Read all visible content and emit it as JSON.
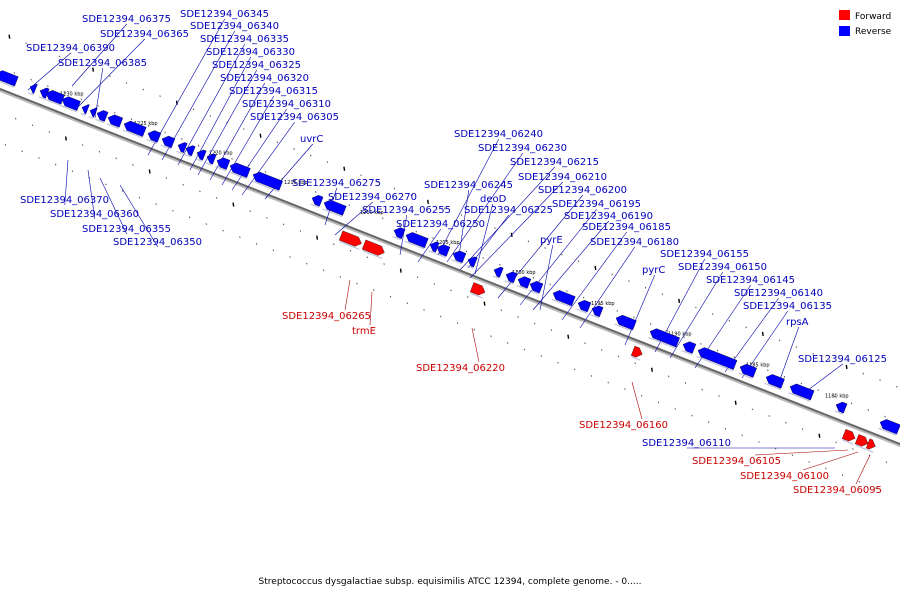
{
  "legend": {
    "items": [
      {
        "label": "Forward",
        "color": "#ff0000"
      },
      {
        "label": "Reverse",
        "color": "#0000ff"
      }
    ]
  },
  "caption": "Streptococcus dysgalactiae subsp. equisimilis ATCC 12394, complete genome. - 0.....",
  "colors": {
    "forward": "#ff0000",
    "reverse": "#0000ff",
    "forward_label": "#cc0000",
    "reverse_label": "#0000bb",
    "backbone": "#666666"
  },
  "scale_labels": [
    "1230 kbp",
    "1225 kbp",
    "1220 kbp",
    "1215 kbp",
    "1210 kbp",
    "1205 kbp",
    "1200 kbp",
    "1195 kbp",
    "1190 kbp",
    "1185 kbp",
    "1180 kbp"
  ],
  "genes": {
    "reverse": [
      "SDE12394_06375",
      "SDE12394_06365",
      "SDE12394_06390",
      "SDE12394_06385",
      "SDE12394_06345",
      "SDE12394_06340",
      "SDE12394_06335",
      "SDE12394_06330",
      "SDE12394_06325",
      "SDE12394_06320",
      "SDE12394_06315",
      "SDE12394_06310",
      "SDE12394_06305",
      "uvrC",
      "SDE12394_06275",
      "SDE12394_06270",
      "SDE12394_06255",
      "SDE12394_06250",
      "SDE12394_06370",
      "SDE12394_06360",
      "SDE12394_06355",
      "SDE12394_06350",
      "SDE12394_06240",
      "SDE12394_06230",
      "SDE12394_06215",
      "SDE12394_06210",
      "SDE12394_06245",
      "SDE12394_06200",
      "deoD",
      "SDE12394_06195",
      "SDE12394_06225",
      "SDE12394_06190",
      "pyrE",
      "SDE12394_06185",
      "SDE12394_06180",
      "pyrC",
      "SDE12394_06155",
      "SDE12394_06150",
      "SDE12394_06145",
      "SDE12394_06140",
      "SDE12394_06135",
      "rpsA",
      "SDE12394_06125",
      "SDE12394_06110"
    ],
    "forward": [
      "SDE12394_06265",
      "trmE",
      "SDE12394_06220",
      "SDE12394_06160",
      "SDE12394_06105",
      "SDE12394_06100",
      "SDE12394_06095"
    ]
  }
}
